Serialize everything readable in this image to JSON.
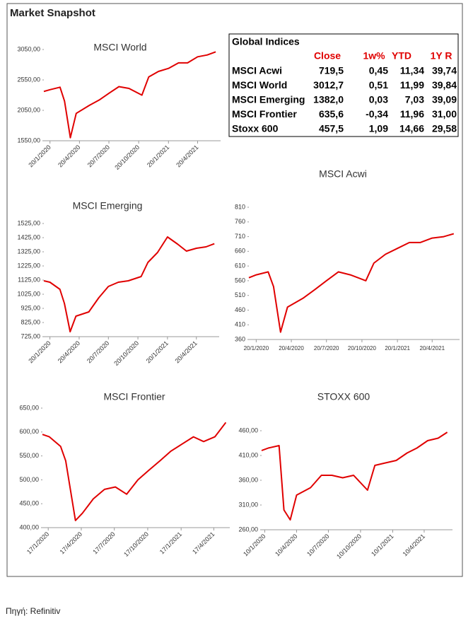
{
  "title": "Market Snapshot",
  "source": "Πηγή: Refinitiv",
  "table": {
    "title": "Global Indices",
    "columns": [
      "Close",
      "1w%",
      "YTD",
      "1Y R"
    ],
    "rows": [
      [
        "MSCI Acwi",
        "719,5",
        "0,45",
        "11,34",
        "39,74"
      ],
      [
        "MSCI World",
        "3012,7",
        "0,51",
        "11,99",
        "39,84"
      ],
      [
        "MSCI Emerging",
        "1382,0",
        "0,03",
        "7,03",
        "39,09"
      ],
      [
        "MSCI Frontier",
        "635,6",
        "-0,34",
        "11,96",
        "31,00"
      ],
      [
        "Stoxx 600",
        "457,5",
        "1,09",
        "14,66",
        "29,58"
      ]
    ]
  },
  "chart_data": [
    {
      "type": "line",
      "title": "MSCI World",
      "color": "#e00000",
      "x": [
        "1/1/2020",
        "20/1/2020",
        "20/2/2020",
        "5/3/2020",
        "23/3/2020",
        "10/4/2020",
        "20/5/2020",
        "20/6/2020",
        "20/7/2020",
        "20/8/2020",
        "20/9/2020",
        "30/10/2020",
        "20/11/2020",
        "20/12/2020",
        "20/1/2021",
        "20/2/2021",
        "20/3/2021",
        "20/4/2021",
        "20/5/2021",
        "15/6/2021"
      ],
      "values": [
        2360,
        2390,
        2430,
        2200,
        1600,
        2000,
        2130,
        2220,
        2330,
        2440,
        2410,
        2300,
        2600,
        2690,
        2740,
        2830,
        2830,
        2930,
        2960,
        3012
      ],
      "xlim": [
        "1/1/2020",
        "30/6/2021"
      ],
      "xticks": [
        "20/1/2020",
        "20/4/2020",
        "20/7/2020",
        "20/10/2020",
        "20/1/2021",
        "20/4/2021"
      ],
      "ylim": [
        1550,
        3050
      ],
      "yticks": [
        {
          "value": 1550,
          "label": "1550,00"
        },
        {
          "value": 2050,
          "label": "2050,00"
        },
        {
          "value": 2550,
          "label": "2550,00"
        },
        {
          "value": 3050,
          "label": "3050,00"
        }
      ]
    },
    {
      "type": "line",
      "title": "MSCI Acwi",
      "color": "#e00000",
      "x": [
        "1/1/2020",
        "20/1/2020",
        "20/2/2020",
        "5/3/2020",
        "23/3/2020",
        "10/4/2020",
        "20/5/2020",
        "20/6/2020",
        "20/7/2020",
        "20/8/2020",
        "20/9/2020",
        "30/10/2020",
        "20/11/2020",
        "20/12/2020",
        "20/1/2021",
        "20/2/2021",
        "20/3/2021",
        "20/4/2021",
        "20/5/2021",
        "15/6/2021"
      ],
      "values": [
        570,
        580,
        590,
        540,
        385,
        470,
        500,
        530,
        560,
        590,
        580,
        560,
        620,
        650,
        670,
        690,
        690,
        705,
        710,
        720
      ],
      "xlim": [
        "1/1/2020",
        "30/6/2021"
      ],
      "xticks": [
        "20/1/2020",
        "20/4/2020",
        "20/7/2020",
        "20/10/2020",
        "20/1/2021",
        "20/4/2021"
      ],
      "ylim": [
        360,
        810
      ],
      "yticks": [
        360,
        410,
        460,
        510,
        560,
        610,
        660,
        710,
        760,
        810
      ]
    },
    {
      "type": "line",
      "title": "MSCI Emerging",
      "color": "#e00000",
      "x": [
        "1/1/2020",
        "20/1/2020",
        "20/2/2020",
        "5/3/2020",
        "23/3/2020",
        "10/4/2020",
        "20/5/2020",
        "20/6/2020",
        "20/7/2020",
        "20/8/2020",
        "20/9/2020",
        "30/10/2020",
        "20/11/2020",
        "20/12/2020",
        "20/1/2021",
        "20/2/2021",
        "20/3/2021",
        "20/4/2021",
        "20/5/2021",
        "15/6/2021"
      ],
      "values": [
        1120,
        1110,
        1060,
        960,
        760,
        870,
        900,
        1000,
        1080,
        1110,
        1120,
        1150,
        1250,
        1320,
        1430,
        1380,
        1330,
        1350,
        1360,
        1382
      ],
      "xlim": [
        "1/1/2020",
        "30/6/2021"
      ],
      "xticks": [
        "20/1/2020",
        "20/4/2020",
        "20/7/2020",
        "20/10/2020",
        "20/1/2021",
        "20/4/2021"
      ],
      "ylim": [
        725,
        1525
      ],
      "yticks": [
        {
          "value": 725,
          "label": "725,00"
        },
        {
          "value": 825,
          "label": "825,00"
        },
        {
          "value": 925,
          "label": "925,00"
        },
        {
          "value": 1025,
          "label": "1025,00"
        },
        {
          "value": 1125,
          "label": "1125,00"
        },
        {
          "value": 1225,
          "label": "1225,00"
        },
        {
          "value": 1325,
          "label": "1325,00"
        },
        {
          "value": 1425,
          "label": "1425,00"
        },
        {
          "value": 1525,
          "label": "1525,00"
        }
      ]
    },
    {
      "type": "line",
      "title": "MSCI Frontier",
      "color": "#e00000",
      "x": [
        "1/1/2020",
        "20/1/2020",
        "20/2/2020",
        "5/3/2020",
        "1/4/2020",
        "20/4/2020",
        "20/5/2020",
        "20/6/2020",
        "20/7/2020",
        "20/8/2020",
        "20/9/2020",
        "20/10/2020",
        "20/11/2020",
        "20/12/2020",
        "20/1/2021",
        "20/2/2021",
        "20/3/2021",
        "20/4/2021",
        "20/5/2021"
      ],
      "values": [
        595,
        590,
        570,
        540,
        415,
        430,
        460,
        480,
        485,
        470,
        500,
        520,
        540,
        560,
        575,
        590,
        580,
        590,
        620
      ],
      "xlim": [
        "1/1/2020",
        "31/5/2021"
      ],
      "xticks": [
        "17/1/2020",
        "17/4/2020",
        "17/7/2020",
        "17/10/2020",
        "17/1/2021",
        "17/4/2021"
      ],
      "ylim": [
        400,
        650
      ],
      "yticks": [
        {
          "value": 400,
          "label": "400,00"
        },
        {
          "value": 450,
          "label": "450,00"
        },
        {
          "value": 500,
          "label": "500,00"
        },
        {
          "value": 550,
          "label": "550,00"
        },
        {
          "value": 600,
          "label": "600,00"
        },
        {
          "value": 650,
          "label": "650,00"
        }
      ]
    },
    {
      "type": "line",
      "title": "STOXX 600",
      "color": "#e00000",
      "x": [
        "1/1/2020",
        "20/1/2020",
        "20/2/2020",
        "5/3/2020",
        "23/3/2020",
        "10/4/2020",
        "20/5/2020",
        "20/6/2020",
        "20/7/2020",
        "20/8/2020",
        "20/9/2020",
        "30/10/2020",
        "20/11/2020",
        "20/12/2020",
        "20/1/2021",
        "20/2/2021",
        "20/3/2021",
        "20/4/2021",
        "20/5/2021",
        "15/6/2021"
      ],
      "values": [
        420,
        425,
        430,
        300,
        280,
        330,
        345,
        370,
        370,
        365,
        370,
        340,
        390,
        395,
        400,
        415,
        425,
        440,
        445,
        457
      ],
      "xlim": [
        "1/1/2020",
        "30/6/2021"
      ],
      "xticks": [
        "10/1/2020",
        "10/4/2020",
        "10/7/2020",
        "10/10/2020",
        "10/1/2021",
        "10/4/2021"
      ],
      "ylim": [
        260,
        460
      ],
      "yticks": [
        {
          "value": 260,
          "label": "260,00"
        },
        {
          "value": 310,
          "label": "310,00"
        },
        {
          "value": 360,
          "label": "360,00"
        },
        {
          "value": 410,
          "label": "410,00"
        },
        {
          "value": 460,
          "label": "460,00"
        }
      ]
    }
  ]
}
